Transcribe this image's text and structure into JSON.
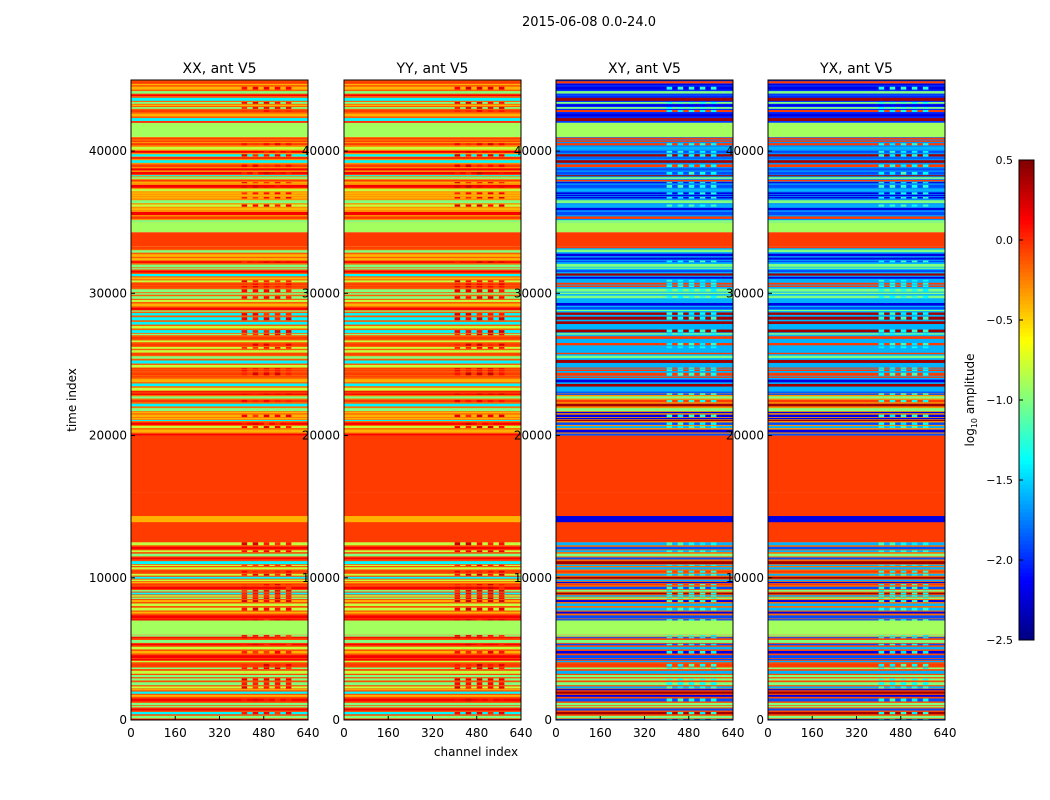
{
  "chart_data": {
    "type": "heatmap",
    "title": "2015-06-08 0.0-24.0",
    "xlabel": "channel index",
    "ylabel": "time index",
    "xlim": [
      0,
      640
    ],
    "ylim": [
      0,
      45000
    ],
    "xticks": [
      "0",
      "160",
      "320",
      "480",
      "640"
    ],
    "yticks": [
      "0",
      "10000",
      "20000",
      "30000",
      "40000"
    ],
    "colorbar": {
      "label": "log10 amplitude",
      "label_main": "log",
      "label_sub": "10",
      "label_rest": " amplitude",
      "range": [
        -2.5,
        0.5
      ],
      "ticks": [
        "0.5",
        "0.0",
        "−0.5",
        "−1.0",
        "−1.5",
        "−2.0",
        "−2.5"
      ],
      "colormap": "jet"
    },
    "panels": [
      {
        "title": "XX, ant V5",
        "bands": [
          [
            0,
            6000,
            -0.1,
            "striped"
          ],
          [
            6000,
            7000,
            -0.9,
            "solid"
          ],
          [
            7000,
            12500,
            -0.1,
            "striped"
          ],
          [
            12500,
            16000,
            -0.05,
            "sparse"
          ],
          [
            16000,
            20000,
            -0.05,
            "solid"
          ],
          [
            20000,
            24500,
            -0.2,
            "striped"
          ],
          [
            24500,
            33300,
            -0.15,
            "striped"
          ],
          [
            33300,
            34300,
            -0.05,
            "solid"
          ],
          [
            34300,
            35000,
            -0.9,
            "solid"
          ],
          [
            35000,
            41000,
            -0.3,
            "striped"
          ],
          [
            41000,
            42000,
            -0.9,
            "solid"
          ],
          [
            42000,
            45000,
            -0.15,
            "striped"
          ]
        ],
        "stripe_values": [
          -0.05,
          -0.4,
          -0.8,
          -1.0,
          -1.4,
          0.15
        ],
        "rfi_channels": [
          400,
          600
        ],
        "rfi_value": 0.1
      },
      {
        "title": "YY, ant V5",
        "bands": [
          [
            0,
            6000,
            -0.1,
            "striped"
          ],
          [
            6000,
            7000,
            -0.9,
            "solid"
          ],
          [
            7000,
            12500,
            -0.1,
            "striped"
          ],
          [
            12500,
            16000,
            -0.05,
            "sparse"
          ],
          [
            16000,
            20000,
            -0.05,
            "solid"
          ],
          [
            20000,
            24500,
            -0.2,
            "striped"
          ],
          [
            24500,
            33300,
            -0.15,
            "striped"
          ],
          [
            33300,
            34300,
            -0.05,
            "solid"
          ],
          [
            34300,
            35000,
            -0.9,
            "solid"
          ],
          [
            35000,
            41000,
            -0.3,
            "striped"
          ],
          [
            41000,
            42000,
            -0.9,
            "solid"
          ],
          [
            42000,
            45000,
            -0.15,
            "striped"
          ]
        ],
        "stripe_values": [
          -0.05,
          -0.4,
          -0.8,
          -1.0,
          -1.4,
          0.15
        ],
        "rfi_channels": [
          400,
          600
        ],
        "rfi_value": 0.15
      },
      {
        "title": "XY, ant V5",
        "bands": [
          [
            0,
            6000,
            -0.1,
            "striped"
          ],
          [
            6000,
            7000,
            -0.9,
            "solid"
          ],
          [
            7000,
            12500,
            -0.2,
            "striped"
          ],
          [
            12500,
            16000,
            -0.05,
            "sparse"
          ],
          [
            16000,
            20000,
            -0.05,
            "solid"
          ],
          [
            20000,
            23000,
            -0.3,
            "striped"
          ],
          [
            23000,
            33300,
            -1.6,
            "striped"
          ],
          [
            33300,
            34300,
            -0.05,
            "solid"
          ],
          [
            34300,
            35000,
            -0.9,
            "solid"
          ],
          [
            35000,
            41000,
            -1.7,
            "striped"
          ],
          [
            41000,
            42000,
            -0.9,
            "solid"
          ],
          [
            42000,
            45000,
            -2.0,
            "striped"
          ]
        ],
        "stripe_values": [
          -0.05,
          -2.2,
          -1.6,
          -1.0,
          0.4,
          -1.9
        ],
        "rfi_channels": [
          400,
          600
        ],
        "rfi_value": -1.3
      },
      {
        "title": "YX, ant V5",
        "bands": [
          [
            0,
            6000,
            -0.1,
            "striped"
          ],
          [
            6000,
            7000,
            -0.9,
            "solid"
          ],
          [
            7000,
            12500,
            -0.2,
            "striped"
          ],
          [
            12500,
            16000,
            -0.05,
            "sparse"
          ],
          [
            16000,
            20000,
            -0.05,
            "solid"
          ],
          [
            20000,
            23000,
            -0.3,
            "striped"
          ],
          [
            23000,
            33300,
            -1.6,
            "striped"
          ],
          [
            33300,
            34300,
            -0.05,
            "solid"
          ],
          [
            34300,
            35000,
            -0.9,
            "solid"
          ],
          [
            35000,
            41000,
            -1.7,
            "striped"
          ],
          [
            41000,
            42000,
            -0.9,
            "solid"
          ],
          [
            42000,
            45000,
            -2.0,
            "striped"
          ]
        ],
        "stripe_values": [
          -0.05,
          -2.2,
          -1.6,
          -1.0,
          0.4,
          -1.9
        ],
        "rfi_channels": [
          400,
          600
        ],
        "rfi_value": -1.3
      }
    ]
  }
}
